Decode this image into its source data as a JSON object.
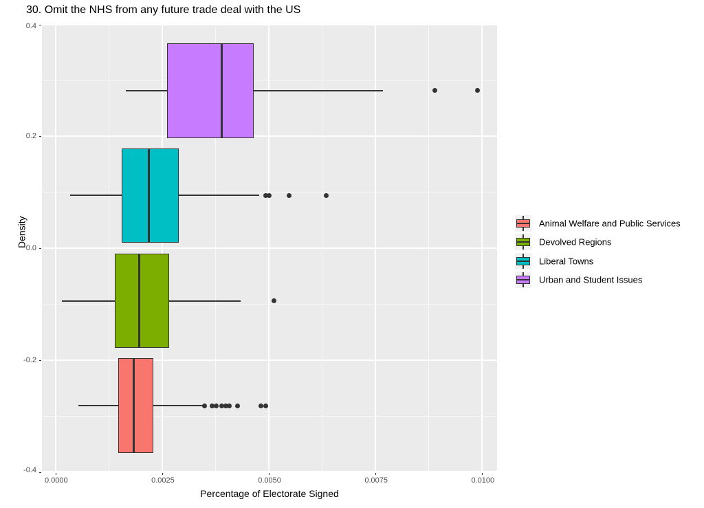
{
  "title": "30. Omit the NHS from any future trade deal with the US",
  "colors": {
    "panel_bg": "#EBEBEB",
    "grid": "#FFFFFF",
    "tick_label": "#4D4D4D",
    "stroke": "#333333",
    "legend_key_bg": "#F2F2F2"
  },
  "chart_data": {
    "type": "boxplot",
    "orientation": "horizontal",
    "title": "30. Omit the NHS from any future trade deal with the US",
    "xlabel": "Percentage of Electorate Signed",
    "ylabel": "Density",
    "xlim": [
      -0.00032,
      0.01035
    ],
    "ylim": [
      -0.4,
      0.4
    ],
    "x_ticks": [
      0.0,
      0.0025,
      0.005,
      0.0075,
      0.01
    ],
    "x_tick_labels": [
      "0.0000",
      "0.0025",
      "0.0050",
      "0.0075",
      "0.0100"
    ],
    "x_minor_ticks": [
      0.00125,
      0.00375,
      0.00625,
      0.00875
    ],
    "y_ticks": [
      0.4,
      0.2,
      0.0,
      -0.2,
      -0.4
    ],
    "y_tick_labels": [
      "0.4",
      "0.2",
      "0.0",
      "-0.2",
      "-0.4"
    ],
    "y_minor_ticks": [
      0.3,
      0.1,
      -0.1,
      -0.3
    ],
    "grid": true,
    "legend_position": "right",
    "box_height": 0.169,
    "series": [
      {
        "name": "Urban and Student Issues",
        "color": "#C77CFF",
        "center_y": 0.281,
        "whisker_low": 0.00165,
        "q1": 0.00261,
        "median": 0.00389,
        "q3": 0.00464,
        "whisker_high": 0.00768,
        "outliers": [
          0.00889,
          0.00989
        ]
      },
      {
        "name": "Liberal Towns",
        "color": "#00BFC4",
        "center_y": 0.094,
        "whisker_low": 0.00034,
        "q1": 0.00155,
        "median": 0.00218,
        "q3": 0.00288,
        "whisker_high": 0.00478,
        "outliers": [
          0.00492,
          0.005,
          0.00548,
          0.00634
        ]
      },
      {
        "name": "Devolved Regions",
        "color": "#7CAE00",
        "center_y": -0.094,
        "whisker_low": 0.00015,
        "q1": 0.00139,
        "median": 0.00196,
        "q3": 0.00267,
        "whisker_high": 0.00434,
        "outliers": [
          0.00512
        ]
      },
      {
        "name": "Animal Welfare and Public Services",
        "color": "#F8766D",
        "center_y": -0.281,
        "whisker_low": 0.00053,
        "q1": 0.00147,
        "median": 0.00183,
        "q3": 0.00229,
        "whisker_high": 0.00346,
        "outliers": [
          0.00349,
          0.00367,
          0.00376,
          0.00389,
          0.00399,
          0.00407,
          0.00426,
          0.00481,
          0.00492
        ]
      }
    ],
    "legend": [
      {
        "label": "Animal Welfare and Public Services",
        "color": "#F8766D"
      },
      {
        "label": "Devolved Regions",
        "color": "#7CAE00"
      },
      {
        "label": "Liberal Towns",
        "color": "#00BFC4"
      },
      {
        "label": "Urban and Student Issues",
        "color": "#C77CFF"
      }
    ]
  }
}
